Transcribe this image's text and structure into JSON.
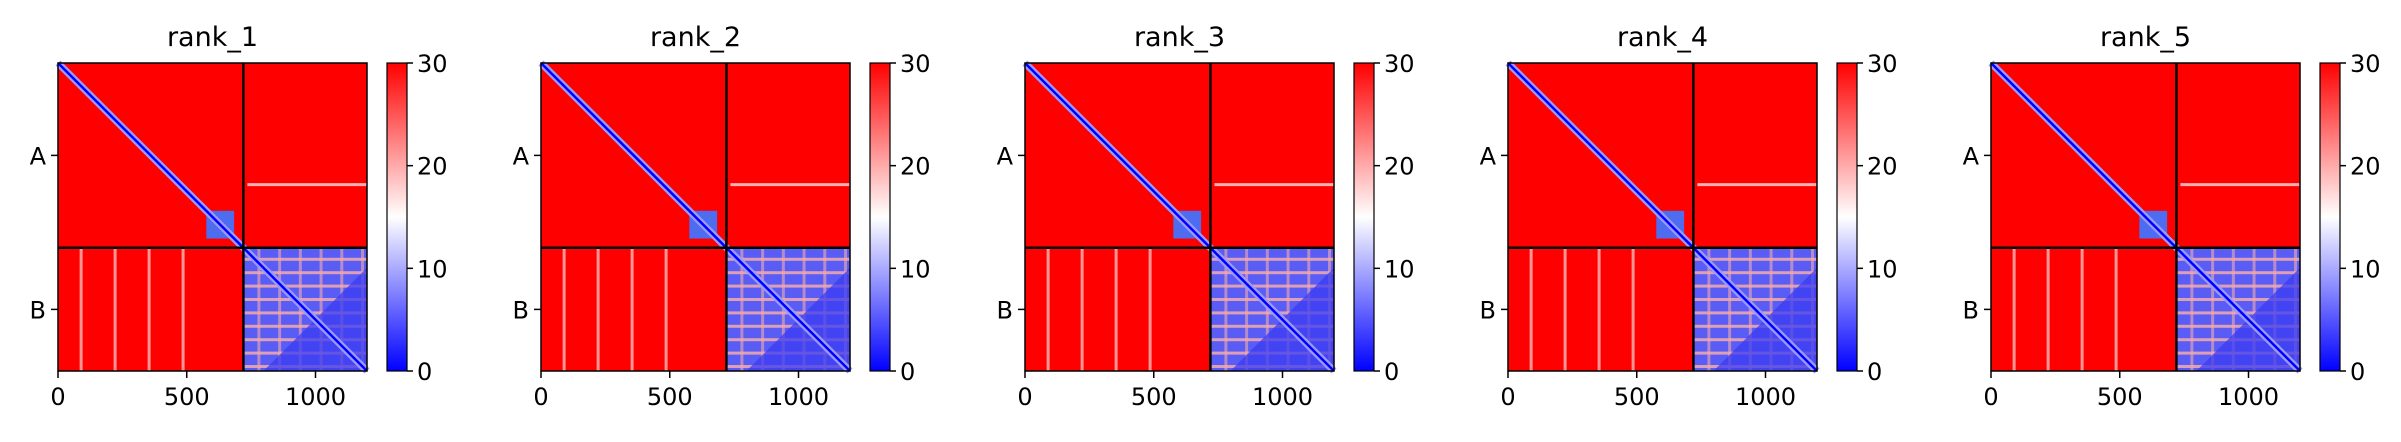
{
  "chart_data": {
    "type": "heatmap",
    "colormap": {
      "name": "bwr",
      "low": "#0000ff",
      "mid": "#ffffff",
      "high": "#ff0000"
    },
    "clim": [
      0,
      30
    ],
    "colorbar_ticks": [
      "0",
      "10",
      "20",
      "30"
    ],
    "xlim": [
      0,
      1200
    ],
    "x_ticks": [
      0,
      500,
      1000
    ],
    "x_tick_labels": [
      "0",
      "500",
      "1000"
    ],
    "chain_boundary": 720,
    "y_labels": [
      "A",
      "B"
    ],
    "panels": [
      {
        "title": "rank_1"
      },
      {
        "title": "rank_2"
      },
      {
        "title": "rank_3"
      },
      {
        "title": "rank_4"
      },
      {
        "title": "rank_5"
      }
    ]
  }
}
